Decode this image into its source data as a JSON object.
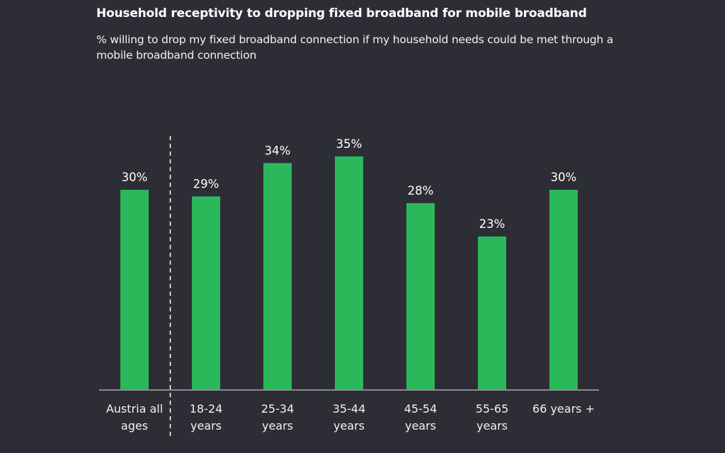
{
  "chart_data": {
    "type": "bar",
    "title": "Household receptivity to dropping fixed broadband for mobile broadband",
    "subtitle": "% willing to drop my fixed broadband connection if my household needs could be met through a mobile broadband connection",
    "categories": [
      [
        "Austria all",
        "ages"
      ],
      [
        "18-24",
        "years"
      ],
      [
        "25-34",
        "years"
      ],
      [
        "35-44",
        "years"
      ],
      [
        "45-54",
        "years"
      ],
      [
        "55-65",
        "years"
      ],
      [
        "66 years +"
      ]
    ],
    "values": [
      30,
      29,
      34,
      35,
      28,
      23,
      30
    ],
    "value_labels": [
      "30%",
      "29%",
      "34%",
      "35%",
      "28%",
      "23%",
      "30%"
    ],
    "unit": "%",
    "xlabel": "",
    "ylabel": "",
    "ylim": [
      0,
      40
    ],
    "grid": false,
    "legend": "none",
    "separator_after_index": 0,
    "colors": {
      "bar": "#2bb85a",
      "background": "#2d2d36",
      "axis": "#8a8a92",
      "text": "#ffffff"
    }
  }
}
